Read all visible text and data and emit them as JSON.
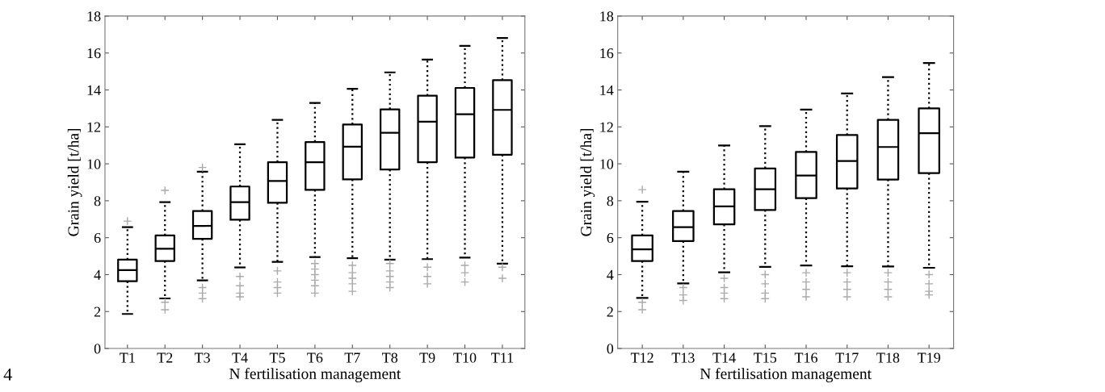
{
  "chart_data": [
    {
      "type": "box",
      "xlabel": "N fertilisation management",
      "ylabel": "Grain yield [t/ha]",
      "ylim": [
        0,
        18
      ],
      "yticks": [
        0,
        2,
        4,
        6,
        8,
        10,
        12,
        14,
        16,
        18
      ],
      "grid": false,
      "marker": "cross",
      "line_style": "dotted",
      "annotations": [
        "4"
      ],
      "categories": [
        "T1",
        "T2",
        "T3",
        "T4",
        "T5",
        "T6",
        "T7",
        "T8",
        "T9",
        "T10",
        "T11"
      ],
      "boxes": [
        {
          "low": 1.87,
          "q1": 3.64,
          "median": 4.24,
          "q3": 4.81,
          "high": 6.57,
          "outliers": [
            6.9
          ]
        },
        {
          "low": 2.71,
          "q1": 4.74,
          "median": 5.4,
          "q3": 6.12,
          "high": 7.92,
          "outliers": [
            8.56,
            2.5,
            2.1
          ]
        },
        {
          "low": 3.69,
          "q1": 5.94,
          "median": 6.64,
          "q3": 7.44,
          "high": 9.57,
          "outliers": [
            9.8,
            3.3,
            3.0,
            2.7
          ]
        },
        {
          "low": 4.39,
          "q1": 6.97,
          "median": 7.92,
          "q3": 8.77,
          "high": 11.06,
          "outliers": [
            3.9,
            3.4,
            3.0,
            2.8
          ]
        },
        {
          "low": 4.69,
          "q1": 7.89,
          "median": 9.07,
          "q3": 10.09,
          "high": 12.38,
          "outliers": [
            4.2,
            3.6,
            3.3,
            3.0
          ]
        },
        {
          "low": 4.95,
          "q1": 8.59,
          "median": 10.09,
          "q3": 11.18,
          "high": 13.3,
          "outliers": [
            4.6,
            4.3,
            4.0,
            3.7,
            3.4,
            3.0
          ]
        },
        {
          "low": 4.89,
          "q1": 9.16,
          "median": 10.93,
          "q3": 12.13,
          "high": 14.06,
          "outliers": [
            4.5,
            4.1,
            3.8,
            3.5,
            3.1
          ]
        },
        {
          "low": 4.81,
          "q1": 9.69,
          "median": 11.68,
          "q3": 12.95,
          "high": 14.95,
          "outliers": [
            4.6,
            4.2,
            3.9,
            3.6,
            3.3
          ]
        },
        {
          "low": 4.84,
          "q1": 10.09,
          "median": 12.28,
          "q3": 13.69,
          "high": 15.64,
          "outliers": [
            4.4,
            3.9,
            3.5
          ]
        },
        {
          "low": 4.92,
          "q1": 10.34,
          "median": 12.68,
          "q3": 14.11,
          "high": 16.39,
          "outliers": [
            4.5,
            4.1,
            3.6
          ]
        },
        {
          "low": 4.59,
          "q1": 10.49,
          "median": 12.92,
          "q3": 14.53,
          "high": 16.81,
          "outliers": [
            4.4,
            3.8
          ]
        }
      ]
    },
    {
      "type": "box",
      "xlabel": "N fertilisation management",
      "ylabel": "Grain yield [t/ha]",
      "ylim": [
        0,
        18
      ],
      "yticks": [
        0,
        2,
        4,
        6,
        8,
        10,
        12,
        14,
        16,
        18
      ],
      "grid": false,
      "marker": "cross",
      "line_style": "dotted",
      "categories": [
        "T12",
        "T13",
        "T14",
        "T15",
        "T16",
        "T17",
        "T18",
        "T19"
      ],
      "boxes": [
        {
          "low": 2.74,
          "q1": 4.74,
          "median": 5.37,
          "q3": 6.12,
          "high": 7.95,
          "outliers": [
            8.6,
            2.5,
            2.1
          ]
        },
        {
          "low": 3.52,
          "q1": 5.82,
          "median": 6.57,
          "q3": 7.44,
          "high": 9.57,
          "outliers": [
            3.3,
            2.9,
            2.6
          ]
        },
        {
          "low": 4.12,
          "q1": 6.72,
          "median": 7.69,
          "q3": 8.62,
          "high": 10.99,
          "outliers": [
            3.8,
            3.3,
            3.0,
            2.7
          ]
        },
        {
          "low": 4.42,
          "q1": 7.5,
          "median": 8.62,
          "q3": 9.75,
          "high": 12.04,
          "outliers": [
            4.0,
            3.5,
            3.0,
            2.7
          ]
        },
        {
          "low": 4.5,
          "q1": 8.14,
          "median": 9.37,
          "q3": 10.64,
          "high": 12.94,
          "outliers": [
            4.1,
            3.6,
            3.2,
            2.8
          ]
        },
        {
          "low": 4.45,
          "q1": 8.67,
          "median": 10.15,
          "q3": 11.56,
          "high": 13.81,
          "outliers": [
            4.1,
            3.6,
            3.2,
            2.8
          ]
        },
        {
          "low": 4.44,
          "q1": 9.15,
          "median": 10.91,
          "q3": 12.38,
          "high": 14.69,
          "outliers": [
            4.1,
            3.6,
            3.2,
            2.8
          ]
        },
        {
          "low": 4.37,
          "q1": 9.5,
          "median": 11.66,
          "q3": 13.0,
          "high": 15.46,
          "outliers": [
            4.0,
            3.5,
            3.1,
            2.9
          ]
        }
      ]
    }
  ]
}
